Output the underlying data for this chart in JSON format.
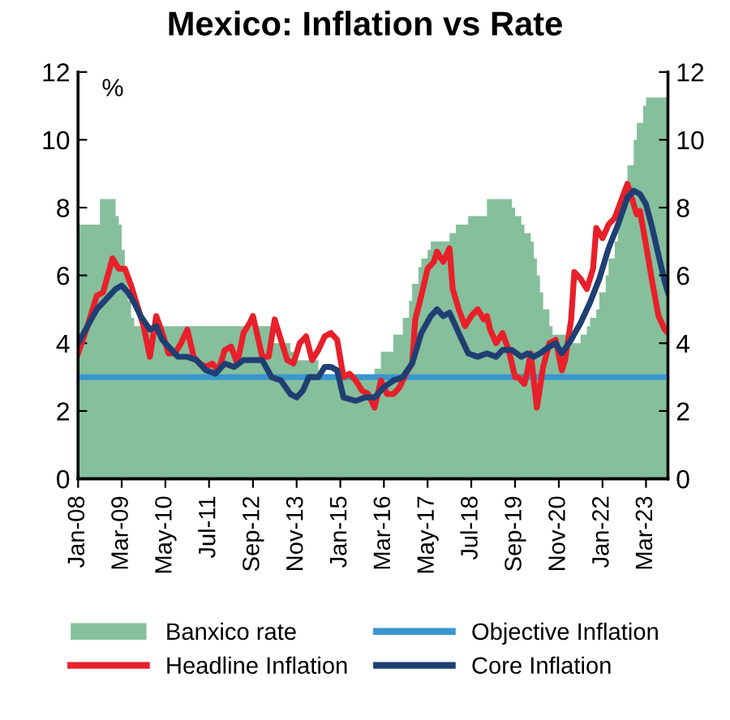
{
  "chart_data": {
    "type": "line",
    "title": "Mexico: Inflation vs Rate",
    "ylabel": "%",
    "xlim": [
      "2008-01",
      "2023-10"
    ],
    "xticks": [
      {
        "value": "2008-01",
        "label": "Jan-08"
      },
      {
        "value": "2009-03",
        "label": "Mar-09"
      },
      {
        "value": "2010-05",
        "label": "May-10"
      },
      {
        "value": "2011-07",
        "label": "Jul-11"
      },
      {
        "value": "2012-09",
        "label": "Sep-12"
      },
      {
        "value": "2013-11",
        "label": "Nov-13"
      },
      {
        "value": "2015-01",
        "label": "Jan-15"
      },
      {
        "value": "2016-03",
        "label": "Mar-16"
      },
      {
        "value": "2017-05",
        "label": "May-17"
      },
      {
        "value": "2018-07",
        "label": "Jul-18"
      },
      {
        "value": "2019-09",
        "label": "Sep-19"
      },
      {
        "value": "2020-11",
        "label": "Nov-20"
      },
      {
        "value": "2022-01",
        "label": "Jan-22"
      },
      {
        "value": "2023-03",
        "label": "Mar-23"
      }
    ],
    "ylim": [
      0,
      12
    ],
    "yticks": [
      0,
      2,
      4,
      6,
      8,
      10,
      12
    ],
    "y2lim": [
      0,
      12
    ],
    "y2ticks": [
      0,
      2,
      4,
      6,
      8,
      10,
      12
    ],
    "grid": false,
    "legend": "bottom",
    "series": [
      {
        "name": "Banxico rate",
        "type": "area",
        "color": "#86bf9c",
        "x": [
          "2008-01",
          "2008-08",
          "2009-01",
          "2009-02",
          "2009-03",
          "2009-04",
          "2009-05",
          "2009-06",
          "2009-07",
          "2013-03",
          "2013-09",
          "2013-10",
          "2014-06",
          "2015-12",
          "2016-02",
          "2016-06",
          "2016-09",
          "2016-11",
          "2016-12",
          "2017-02",
          "2017-03",
          "2017-05",
          "2017-06",
          "2017-12",
          "2018-02",
          "2018-06",
          "2018-12",
          "2019-08",
          "2019-09",
          "2019-11",
          "2019-12",
          "2020-02",
          "2020-03",
          "2020-04",
          "2020-05",
          "2020-06",
          "2020-08",
          "2020-09",
          "2021-02",
          "2021-06",
          "2021-08",
          "2021-09",
          "2021-11",
          "2021-12",
          "2022-02",
          "2022-03",
          "2022-05",
          "2022-06",
          "2022-08",
          "2022-09",
          "2022-11",
          "2022-12",
          "2023-02",
          "2023-03",
          "2023-10"
        ],
        "values": [
          7.5,
          8.25,
          7.75,
          7.5,
          6.75,
          6.0,
          5.25,
          4.75,
          4.5,
          4.0,
          3.75,
          3.5,
          3.0,
          3.25,
          3.75,
          4.25,
          4.75,
          5.25,
          5.75,
          6.25,
          6.5,
          6.75,
          7.0,
          7.25,
          7.5,
          7.75,
          8.25,
          8.0,
          7.75,
          7.5,
          7.25,
          7.0,
          6.5,
          6.0,
          5.5,
          5.0,
          4.5,
          4.25,
          4.0,
          4.25,
          4.5,
          4.75,
          5.0,
          5.5,
          6.0,
          6.5,
          7.0,
          7.75,
          8.5,
          9.25,
          10.0,
          10.5,
          11.0,
          11.25,
          11.25
        ]
      },
      {
        "name": "Objective Inflation",
        "color": "#3a96cf",
        "x": [
          "2008-01",
          "2023-10"
        ],
        "values": [
          3,
          3
        ]
      },
      {
        "name": "Headline Inflation",
        "color": "#e8202a",
        "x": [
          "2008-01",
          "2008-04",
          "2008-07",
          "2008-09",
          "2008-12",
          "2009-02",
          "2009-04",
          "2009-06",
          "2009-08",
          "2009-10",
          "2009-12",
          "2010-02",
          "2010-04",
          "2010-06",
          "2010-08",
          "2010-10",
          "2010-12",
          "2011-02",
          "2011-04",
          "2011-06",
          "2011-08",
          "2011-10",
          "2011-12",
          "2012-02",
          "2012-04",
          "2012-06",
          "2012-08",
          "2012-09",
          "2012-12",
          "2013-02",
          "2013-04",
          "2013-06",
          "2013-08",
          "2013-10",
          "2013-12",
          "2014-02",
          "2014-04",
          "2014-06",
          "2014-08",
          "2014-10",
          "2014-12",
          "2015-02",
          "2015-04",
          "2015-06",
          "2015-08",
          "2015-10",
          "2015-12",
          "2016-02",
          "2016-04",
          "2016-06",
          "2016-08",
          "2016-10",
          "2016-12",
          "2017-01",
          "2017-03",
          "2017-05",
          "2017-07",
          "2017-08",
          "2017-10",
          "2017-12",
          "2018-01",
          "2018-03",
          "2018-05",
          "2018-07",
          "2018-09",
          "2018-11",
          "2018-12",
          "2019-01",
          "2019-03",
          "2019-05",
          "2019-07",
          "2019-09",
          "2019-10",
          "2019-12",
          "2020-01",
          "2020-02",
          "2020-04",
          "2020-06",
          "2020-08",
          "2020-10",
          "2020-12",
          "2021-01",
          "2021-03",
          "2021-04",
          "2021-06",
          "2021-08",
          "2021-10",
          "2021-11",
          "2022-01",
          "2022-03",
          "2022-05",
          "2022-07",
          "2022-09",
          "2022-10",
          "2022-12",
          "2023-01",
          "2023-03",
          "2023-05",
          "2023-07",
          "2023-09",
          "2023-10"
        ],
        "values": [
          3.7,
          4.5,
          5.4,
          5.5,
          6.5,
          6.2,
          6.2,
          5.7,
          5.1,
          4.5,
          3.6,
          4.8,
          4.3,
          3.7,
          3.7,
          4.0,
          4.4,
          3.6,
          3.4,
          3.3,
          3.4,
          3.2,
          3.8,
          3.9,
          3.4,
          4.3,
          4.6,
          4.8,
          3.6,
          3.6,
          4.7,
          4.1,
          3.5,
          3.4,
          4.0,
          4.2,
          3.5,
          3.8,
          4.2,
          4.3,
          4.1,
          3.0,
          3.1,
          2.9,
          2.6,
          2.5,
          2.1,
          2.9,
          2.5,
          2.5,
          2.7,
          3.1,
          3.4,
          4.7,
          5.4,
          6.2,
          6.4,
          6.7,
          6.4,
          6.8,
          5.6,
          5.0,
          4.5,
          4.8,
          5.0,
          4.7,
          4.8,
          4.4,
          4.0,
          4.3,
          3.8,
          3.0,
          3.0,
          2.8,
          3.2,
          3.7,
          2.1,
          3.3,
          4.0,
          4.1,
          3.2,
          3.5,
          4.7,
          6.1,
          5.9,
          5.6,
          6.2,
          7.4,
          7.1,
          7.5,
          7.7,
          8.2,
          8.7,
          8.4,
          7.8,
          7.9,
          6.9,
          5.8,
          4.8,
          4.4,
          4.3
        ]
      },
      {
        "name": "Core Inflation",
        "color": "#1f3f73",
        "x": [
          "2008-01",
          "2008-04",
          "2008-07",
          "2008-10",
          "2009-01",
          "2009-03",
          "2009-05",
          "2009-07",
          "2009-09",
          "2009-12",
          "2010-02",
          "2010-04",
          "2010-06",
          "2010-09",
          "2010-12",
          "2011-03",
          "2011-06",
          "2011-09",
          "2011-12",
          "2012-03",
          "2012-06",
          "2012-09",
          "2012-12",
          "2013-03",
          "2013-06",
          "2013-09",
          "2013-11",
          "2014-01",
          "2014-03",
          "2014-06",
          "2014-08",
          "2014-10",
          "2014-12",
          "2015-02",
          "2015-06",
          "2015-09",
          "2015-12",
          "2016-03",
          "2016-06",
          "2016-09",
          "2016-12",
          "2017-03",
          "2017-06",
          "2017-08",
          "2017-10",
          "2017-12",
          "2018-03",
          "2018-06",
          "2018-09",
          "2018-12",
          "2019-03",
          "2019-05",
          "2019-08",
          "2019-11",
          "2020-01",
          "2020-03",
          "2020-05",
          "2020-08",
          "2020-10",
          "2020-12",
          "2021-03",
          "2021-06",
          "2021-09",
          "2021-12",
          "2022-03",
          "2022-06",
          "2022-09",
          "2022-11",
          "2023-01",
          "2023-03",
          "2023-05",
          "2023-07",
          "2023-09",
          "2023-10"
        ],
        "values": [
          4.0,
          4.5,
          5.0,
          5.3,
          5.6,
          5.7,
          5.5,
          5.2,
          4.8,
          4.4,
          4.5,
          4.1,
          3.9,
          3.6,
          3.6,
          3.5,
          3.2,
          3.1,
          3.4,
          3.3,
          3.5,
          3.5,
          3.5,
          3.0,
          2.9,
          2.5,
          2.4,
          2.6,
          3.0,
          3.0,
          3.3,
          3.3,
          3.2,
          2.4,
          2.3,
          2.4,
          2.4,
          2.7,
          2.9,
          3.0,
          3.4,
          4.3,
          4.8,
          5.0,
          4.8,
          4.9,
          4.3,
          3.7,
          3.6,
          3.7,
          3.6,
          3.8,
          3.8,
          3.6,
          3.7,
          3.6,
          3.7,
          3.9,
          4.0,
          3.7,
          4.1,
          4.6,
          5.2,
          5.9,
          6.8,
          7.5,
          8.3,
          8.5,
          8.4,
          8.1,
          7.4,
          6.6,
          5.8,
          5.5
        ]
      }
    ]
  }
}
